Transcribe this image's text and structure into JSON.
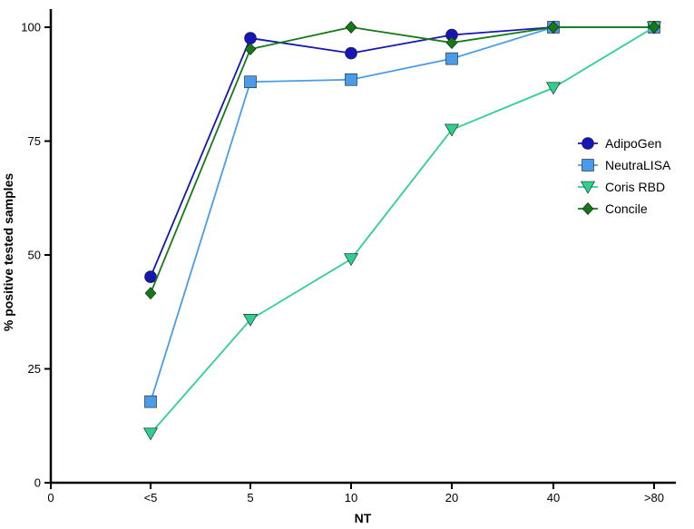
{
  "chart_data": {
    "type": "line",
    "xlabel": "NT",
    "ylabel": "% positive tested samples",
    "x_origin_label": "0",
    "categories": [
      "<5",
      "5",
      "10",
      "20",
      "40",
      ">80"
    ],
    "ylim": [
      0,
      100
    ],
    "yticks": [
      0,
      25,
      50,
      75,
      100
    ],
    "legend_position": "right",
    "grid": false,
    "series": [
      {
        "name": "AdipoGen",
        "color": "#1616b4",
        "marker": "circle",
        "values": [
          45.2,
          97.6,
          94.3,
          98.3,
          100,
          100
        ]
      },
      {
        "name": "NeutraLISA",
        "color": "#4a9ce8",
        "marker": "square",
        "values": [
          17.8,
          88.0,
          88.5,
          93.1,
          100,
          100
        ]
      },
      {
        "name": "Coris RBD",
        "color": "#2ecf8f",
        "marker": "triangle-down",
        "values": [
          10.8,
          35.8,
          49.1,
          77.5,
          86.7,
          100
        ]
      },
      {
        "name": "Concile",
        "color": "#157a15",
        "marker": "diamond",
        "values": [
          41.6,
          95.2,
          100,
          96.6,
          100,
          100
        ]
      }
    ]
  }
}
